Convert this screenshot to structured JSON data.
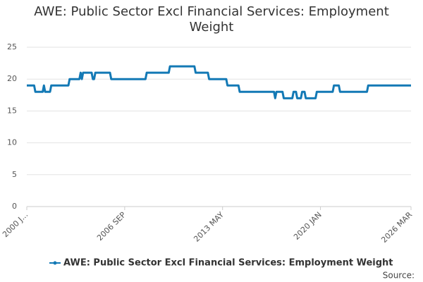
{
  "chart_data": {
    "type": "line",
    "title": "AWE: Public Sector Excl Financial Services: Employment Weight",
    "source": "Source:",
    "x": [
      "2000 JAN",
      "2000 FEB",
      "2000 MAR",
      "2000 APR",
      "2000 MAY",
      "2000 JUN",
      "2000 JUL",
      "2000 AUG",
      "2000 SEP",
      "2000 OCT",
      "2000 NOV",
      "2000 DEC",
      "2001 JAN",
      "2001 FEB",
      "2001 MAR",
      "2001 APR",
      "2001 MAY",
      "2001 JUN",
      "2001 JUL",
      "2001 AUG",
      "2001 SEP",
      "2001 OCT",
      "2001 NOV",
      "2001 DEC",
      "2002 JAN",
      "2002 FEB",
      "2002 MAR",
      "2002 APR",
      "2002 MAY",
      "2002 JUN",
      "2002 JUL",
      "2002 AUG",
      "2002 SEP",
      "2002 OCT",
      "2002 NOV",
      "2002 DEC",
      "2003 JAN",
      "2003 FEB",
      "2003 MAR",
      "2003 APR",
      "2003 MAY",
      "2003 JUN",
      "2003 JUL",
      "2003 AUG",
      "2003 SEP",
      "2003 OCT",
      "2003 NOV",
      "2003 DEC",
      "2004 JAN",
      "2004 FEB",
      "2004 MAR",
      "2004 APR",
      "2004 MAY",
      "2004 JUN",
      "2004 JUL",
      "2004 AUG",
      "2004 SEP",
      "2004 OCT",
      "2004 NOV",
      "2004 DEC",
      "2005 JAN",
      "2005 FEB",
      "2005 MAR",
      "2005 APR",
      "2005 MAY",
      "2005 JUN",
      "2005 JUL",
      "2005 AUG",
      "2005 SEP",
      "2005 OCT",
      "2005 NOV",
      "2005 DEC",
      "2006 JAN",
      "2006 FEB",
      "2006 MAR",
      "2006 APR",
      "2006 MAY",
      "2006 JUN",
      "2006 JUL",
      "2006 AUG",
      "2006 SEP",
      "2006 OCT",
      "2006 NOV",
      "2006 DEC",
      "2007 JAN",
      "2007 FEB",
      "2007 MAR",
      "2007 APR",
      "2007 MAY",
      "2007 JUN",
      "2007 JUL",
      "2007 AUG",
      "2007 SEP",
      "2007 OCT",
      "2007 NOV",
      "2007 DEC",
      "2008 JAN",
      "2008 FEB",
      "2008 MAR",
      "2008 APR",
      "2008 MAY",
      "2008 JUN",
      "2008 JUL",
      "2008 AUG",
      "2008 SEP",
      "2008 OCT",
      "2008 NOV",
      "2008 DEC",
      "2009 JAN",
      "2009 FEB",
      "2009 MAR",
      "2009 APR",
      "2009 MAY",
      "2009 JUN",
      "2009 JUL",
      "2009 AUG",
      "2009 SEP",
      "2009 OCT",
      "2009 NOV",
      "2009 DEC",
      "2010 JAN",
      "2010 FEB",
      "2010 MAR",
      "2010 APR",
      "2010 MAY",
      "2010 JUN",
      "2010 JUL",
      "2010 AUG",
      "2010 SEP",
      "2010 OCT",
      "2010 NOV",
      "2010 DEC",
      "2011 JAN",
      "2011 FEB",
      "2011 MAR",
      "2011 APR",
      "2011 MAY",
      "2011 JUN",
      "2011 JUL",
      "2011 AUG",
      "2011 SEP",
      "2011 OCT",
      "2011 NOV",
      "2011 DEC",
      "2012 JAN",
      "2012 FEB",
      "2012 MAR",
      "2012 APR",
      "2012 MAY",
      "2012 JUN",
      "2012 JUL",
      "2012 AUG",
      "2012 SEP",
      "2012 OCT",
      "2012 NOV",
      "2012 DEC",
      "2013 JAN",
      "2013 FEB",
      "2013 MAR",
      "2013 APR",
      "2013 MAY",
      "2013 JUN",
      "2013 JUL",
      "2013 AUG",
      "2013 SEP",
      "2013 OCT",
      "2013 NOV",
      "2013 DEC",
      "2014 JAN",
      "2014 FEB",
      "2014 MAR",
      "2014 APR",
      "2014 MAY",
      "2014 JUN",
      "2014 JUL",
      "2014 AUG",
      "2014 SEP",
      "2014 OCT",
      "2014 NOV",
      "2014 DEC",
      "2015 JAN",
      "2015 FEB",
      "2015 MAR",
      "2015 APR",
      "2015 MAY",
      "2015 JUN",
      "2015 JUL",
      "2015 AUG",
      "2015 SEP",
      "2015 OCT",
      "2015 NOV",
      "2015 DEC",
      "2016 JAN",
      "2016 FEB",
      "2016 MAR",
      "2016 APR",
      "2016 MAY",
      "2016 JUN",
      "2016 JUL",
      "2016 AUG",
      "2016 SEP",
      "2016 OCT",
      "2016 NOV",
      "2016 DEC",
      "2017 JAN",
      "2017 FEB",
      "2017 MAR",
      "2017 APR",
      "2017 MAY",
      "2017 JUN",
      "2017 JUL",
      "2017 AUG",
      "2017 SEP",
      "2017 OCT",
      "2017 NOV",
      "2017 DEC",
      "2018 JAN",
      "2018 FEB",
      "2018 MAR",
      "2018 APR",
      "2018 MAY",
      "2018 JUN",
      "2018 JUL",
      "2018 AUG",
      "2018 SEP",
      "2018 OCT",
      "2018 NOV",
      "2018 DEC",
      "2019 JAN",
      "2019 FEB",
      "2019 MAR",
      "2019 APR",
      "2019 MAY",
      "2019 JUN",
      "2019 JUL",
      "2019 AUG",
      "2019 SEP",
      "2019 OCT",
      "2019 NOV",
      "2019 DEC",
      "2020 JAN",
      "2020 FEB",
      "2020 MAR",
      "2020 APR",
      "2020 MAY",
      "2020 JUN",
      "2020 JUL",
      "2020 AUG",
      "2020 SEP",
      "2020 OCT",
      "2020 NOV",
      "2020 DEC",
      "2021 JAN",
      "2021 FEB",
      "2021 MAR",
      "2021 APR",
      "2021 MAY",
      "2021 JUN",
      "2021 JUL",
      "2021 AUG",
      "2021 SEP",
      "2021 OCT",
      "2021 NOV",
      "2021 DEC",
      "2022 JAN",
      "2022 FEB",
      "2022 MAR",
      "2022 APR",
      "2022 MAY",
      "2022 JUN",
      "2022 JUL",
      "2022 AUG",
      "2022 SEP",
      "2022 OCT",
      "2022 NOV",
      "2022 DEC",
      "2023 JAN",
      "2023 FEB",
      "2023 MAR",
      "2023 APR",
      "2023 MAY",
      "2023 JUN",
      "2023 JUL",
      "2023 AUG",
      "2023 SEP",
      "2023 OCT",
      "2023 NOV",
      "2023 DEC",
      "2024 JAN",
      "2024 FEB",
      "2024 MAR",
      "2024 APR",
      "2024 MAY",
      "2024 JUN",
      "2024 JUL",
      "2024 AUG",
      "2024 SEP",
      "2024 OCT",
      "2024 NOV",
      "2024 DEC",
      "2025 JAN",
      "2025 FEB",
      "2025 MAR",
      "2025 APR",
      "2025 MAY",
      "2025 JUN",
      "2025 JUL",
      "2025 AUG",
      "2025 SEP",
      "2025 OCT",
      "2025 NOV",
      "2025 DEC",
      "2026 JAN",
      "2026 FEB",
      "2026 MAR"
    ],
    "series": [
      {
        "name": "AWE: Public Sector Excl Financial Services: Employment Weight",
        "color": "#1379b5",
        "values": [
          19,
          19,
          19,
          19,
          19,
          19,
          19,
          18,
          18,
          18,
          18,
          18,
          18,
          18,
          19,
          18,
          18,
          18,
          18,
          18,
          19,
          19,
          19,
          19,
          19,
          19,
          19,
          19,
          19,
          19,
          19,
          19,
          19,
          19,
          19,
          20,
          20,
          20,
          20,
          20,
          20,
          20,
          20,
          20,
          21,
          20,
          21,
          21,
          21,
          21,
          21,
          21,
          21,
          21,
          20,
          20,
          21,
          21,
          21,
          21,
          21,
          21,
          21,
          21,
          21,
          21,
          21,
          21,
          21,
          20,
          20,
          20,
          20,
          20,
          20,
          20,
          20,
          20,
          20,
          20,
          20,
          20,
          20,
          20,
          20,
          20,
          20,
          20,
          20,
          20,
          20,
          20,
          20,
          20,
          20,
          20,
          20,
          20,
          21,
          21,
          21,
          21,
          21,
          21,
          21,
          21,
          21,
          21,
          21,
          21,
          21,
          21,
          21,
          21,
          21,
          21,
          21,
          22,
          22,
          22,
          22,
          22,
          22,
          22,
          22,
          22,
          22,
          22,
          22,
          22,
          22,
          22,
          22,
          22,
          22,
          22,
          22,
          22,
          21,
          21,
          21,
          21,
          21,
          21,
          21,
          21,
          21,
          21,
          21,
          20,
          20,
          20,
          20,
          20,
          20,
          20,
          20,
          20,
          20,
          20,
          20,
          20,
          20,
          20,
          19,
          19,
          19,
          19,
          19,
          19,
          19,
          19,
          19,
          19,
          18,
          18,
          18,
          18,
          18,
          18,
          18,
          18,
          18,
          18,
          18,
          18,
          18,
          18,
          18,
          18,
          18,
          18,
          18,
          18,
          18,
          18,
          18,
          18,
          18,
          18,
          18,
          18,
          18,
          17,
          18,
          18,
          18,
          18,
          18,
          18,
          17,
          17,
          17,
          17,
          17,
          17,
          17,
          17,
          18,
          18,
          18,
          17,
          17,
          17,
          17,
          18,
          18,
          18,
          17,
          17,
          17,
          17,
          17,
          17,
          17,
          17,
          17,
          18,
          18,
          18,
          18,
          18,
          18,
          18,
          18,
          18,
          18,
          18,
          18,
          18,
          18,
          19,
          19,
          19,
          19,
          19,
          18,
          18,
          18,
          18,
          18,
          18,
          18,
          18,
          18,
          18,
          18,
          18,
          18,
          18,
          18,
          18,
          18,
          18,
          18,
          18,
          18,
          18,
          18,
          19,
          19,
          19,
          19,
          19,
          19,
          19,
          19,
          19,
          19,
          19,
          19,
          19,
          19,
          19,
          19,
          19,
          19,
          19,
          19,
          19,
          19,
          19,
          19,
          19,
          19,
          19,
          19,
          19,
          19,
          19,
          19,
          19,
          19,
          19,
          19
        ]
      }
    ],
    "xticks": [
      {
        "value": "2000 JAN",
        "label": "2000 J..."
      },
      "2006 SEP",
      "2013 MAY",
      "2020 JAN",
      "2026 MAR"
    ],
    "ylim": [
      0,
      25
    ],
    "yticks": [
      0,
      5,
      10,
      15,
      20,
      25
    ],
    "grid": true
  }
}
